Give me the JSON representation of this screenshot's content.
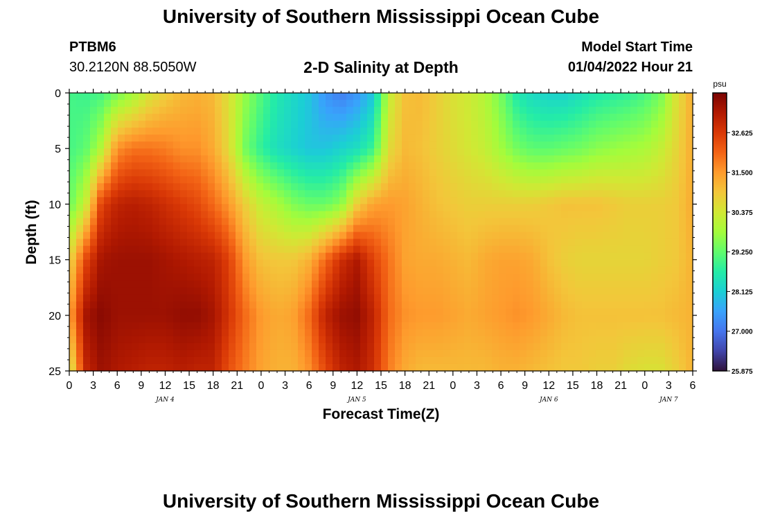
{
  "header": {
    "title": "University of Southern Mississippi Ocean Cube",
    "station_id": "PTBM6",
    "coords": "30.2120N  88.5050W",
    "plot_title": "2-D Salinity at Depth",
    "start_label": "Model Start Time",
    "start_value": "01/04/2022 Hour 21"
  },
  "footer": {
    "title": "University of Southern Mississippi Ocean Cube"
  },
  "chart_data": {
    "type": "heatmap",
    "title": "2-D Salinity at Depth",
    "xlabel": "Forecast Time(Z)",
    "ylabel": "Depth (ft)",
    "ylim": [
      0,
      25
    ],
    "y_inverted": true,
    "y_ticks": [
      0,
      5,
      10,
      15,
      20,
      25
    ],
    "x_range_hours_from_jan4_00z": [
      0,
      78
    ],
    "x_tick_labels": [
      "0",
      "3",
      "6",
      "9",
      "12",
      "15",
      "18",
      "21",
      "0",
      "3",
      "6",
      "9",
      "12",
      "15",
      "18",
      "21",
      "0",
      "3",
      "6",
      "9",
      "12",
      "15",
      "18",
      "21",
      "0",
      "3",
      "6"
    ],
    "day_labels": [
      {
        "label": "JAN 4",
        "hour": 12
      },
      {
        "label": "JAN 5",
        "hour": 36
      },
      {
        "label": "JAN 6",
        "hour": 60
      },
      {
        "label": "JAN 7",
        "hour": 75
      }
    ],
    "colorbar": {
      "unit": "psu",
      "min": 25.875,
      "max": 33.75,
      "ticks": [
        "32.625",
        "31.500",
        "30.375",
        "29.250",
        "28.125",
        "27.000",
        "25.875"
      ],
      "colors": [
        "#30123b",
        "#4145ab",
        "#4675ed",
        "#39a2fc",
        "#1bcfd4",
        "#24eca6",
        "#61fc6c",
        "#a4fc3b",
        "#d1e834",
        "#f3c63a",
        "#fe9b2d",
        "#f36315",
        "#d93806",
        "#b11901",
        "#7a0403"
      ]
    },
    "depths_ft": [
      0,
      5,
      10,
      15,
      20,
      25
    ],
    "times_h": [
      0,
      2,
      4,
      6,
      8,
      10,
      12,
      14,
      16,
      18,
      20,
      22,
      24,
      26,
      28,
      30,
      32,
      34,
      36,
      38,
      40,
      42,
      44,
      46,
      48,
      50,
      52,
      54,
      56,
      58,
      60,
      62,
      64,
      66,
      68,
      70,
      72,
      74,
      76,
      78
    ],
    "salinity_psu": [
      [
        29.0,
        28.9,
        29.0,
        29.4,
        29.8,
        30.4,
        30.8,
        31.1,
        31.2,
        31.1,
        30.5,
        29.7,
        29.1,
        28.6,
        28.3,
        28.0,
        27.4,
        27.1,
        27.4,
        28.0,
        30.2,
        31.0,
        31.1,
        30.8,
        30.5,
        30.3,
        30.0,
        29.4,
        28.6,
        28.3,
        28.2,
        28.2,
        28.4,
        28.6,
        28.7,
        28.8,
        29.0,
        29.4,
        30.5,
        31.3
      ],
      [
        29.0,
        29.2,
        30.0,
        31.6,
        31.9,
        31.9,
        31.8,
        31.6,
        31.6,
        31.3,
        30.6,
        29.4,
        28.8,
        28.4,
        28.2,
        28.0,
        28.0,
        28.2,
        28.4,
        28.9,
        30.6,
        31.1,
        31.0,
        30.8,
        30.6,
        30.4,
        30.2,
        29.8,
        29.4,
        29.2,
        29.2,
        29.3,
        29.4,
        29.6,
        29.7,
        29.8,
        29.9,
        30.2,
        30.7,
        31.3
      ],
      [
        29.3,
        30.2,
        32.5,
        33.0,
        33.1,
        33.0,
        32.8,
        32.6,
        32.4,
        32.0,
        31.5,
        30.8,
        30.2,
        29.9,
        29.5,
        29.3,
        29.3,
        29.6,
        30.8,
        31.4,
        31.5,
        31.4,
        31.2,
        31.0,
        30.9,
        30.8,
        30.8,
        30.8,
        30.8,
        30.8,
        30.9,
        31.0,
        31.0,
        31.0,
        30.9,
        30.8,
        30.8,
        30.8,
        30.9,
        31.3
      ],
      [
        30.6,
        32.4,
        33.3,
        33.4,
        33.4,
        33.4,
        33.3,
        33.2,
        33.1,
        33.0,
        32.5,
        31.5,
        31.0,
        30.9,
        30.9,
        31.2,
        32.0,
        32.8,
        33.2,
        32.5,
        31.9,
        31.4,
        31.3,
        31.3,
        31.2,
        31.1,
        31.3,
        31.4,
        31.4,
        31.3,
        31.0,
        30.8,
        30.7,
        30.7,
        30.7,
        30.7,
        30.7,
        30.8,
        30.9,
        31.2
      ],
      [
        31.3,
        33.3,
        33.6,
        33.4,
        33.4,
        33.4,
        33.4,
        33.5,
        33.5,
        33.3,
        32.7,
        32.0,
        31.5,
        31.3,
        31.4,
        32.0,
        33.0,
        33.4,
        33.5,
        33.0,
        32.0,
        31.6,
        31.5,
        31.5,
        31.4,
        31.3,
        31.4,
        31.5,
        31.6,
        31.5,
        31.3,
        31.1,
        31.0,
        31.0,
        31.0,
        31.0,
        31.0,
        31.0,
        31.1,
        31.2
      ],
      [
        30.2,
        32.9,
        33.4,
        33.2,
        33.1,
        33.0,
        33.0,
        33.1,
        33.0,
        33.0,
        32.3,
        31.8,
        31.4,
        31.2,
        31.2,
        31.6,
        32.4,
        33.0,
        33.2,
        32.8,
        31.8,
        31.3,
        31.1,
        31.1,
        31.1,
        31.1,
        31.1,
        31.2,
        31.2,
        31.1,
        31.0,
        30.9,
        30.9,
        30.8,
        30.8,
        30.6,
        30.5,
        30.5,
        30.8,
        31.2
      ]
    ]
  }
}
